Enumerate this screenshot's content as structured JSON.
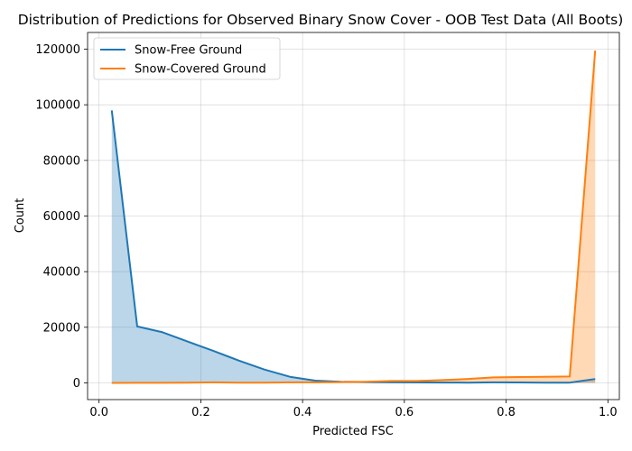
{
  "chart_data": {
    "type": "area",
    "title": "Distribution of Predictions for Observed Binary Snow Cover - OOB Test Data (All Boots)",
    "xlabel": "Predicted FSC",
    "ylabel": "Count",
    "xlim": [
      -0.0225,
      1.0225
    ],
    "ylim": [
      -6000,
      126000
    ],
    "xticks": [
      0.0,
      0.2,
      0.4,
      0.6,
      0.8,
      1.0
    ],
    "xtick_labels": [
      "0.0",
      "0.2",
      "0.4",
      "0.6",
      "0.8",
      "1.0"
    ],
    "yticks": [
      0,
      20000,
      40000,
      60000,
      80000,
      100000,
      120000
    ],
    "ytick_labels": [
      "0",
      "20000",
      "40000",
      "60000",
      "80000",
      "100000",
      "120000"
    ],
    "grid": true,
    "legend_position": "top-left",
    "x": [
      0.025,
      0.075,
      0.125,
      0.175,
      0.225,
      0.275,
      0.325,
      0.375,
      0.425,
      0.475,
      0.525,
      0.575,
      0.625,
      0.675,
      0.725,
      0.775,
      0.825,
      0.875,
      0.925,
      0.975
    ],
    "series": [
      {
        "name": "Snow-Free Ground",
        "color": "#1f77b4",
        "fill": "#1f77b4",
        "values": [
          98000,
          20300,
          18200,
          14800,
          11500,
          8000,
          4800,
          2200,
          800,
          400,
          300,
          200,
          150,
          120,
          100,
          200,
          150,
          100,
          100,
          1400
        ]
      },
      {
        "name": "Snow-Covered Ground",
        "color": "#ff7f0e",
        "fill": "#ff7f0e",
        "values": [
          0,
          50,
          50,
          100,
          200,
          100,
          100,
          200,
          200,
          300,
          400,
          700,
          700,
          1000,
          1400,
          2000,
          2100,
          2200,
          2300,
          119500
        ]
      }
    ]
  }
}
